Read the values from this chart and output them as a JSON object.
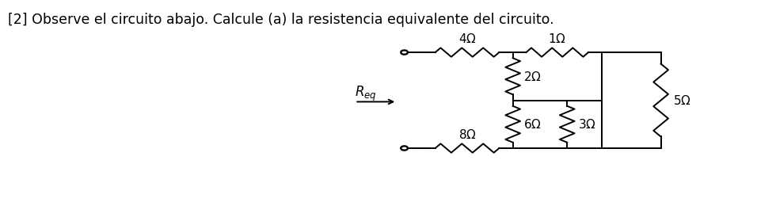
{
  "title_text": "[2] Observe el circuito abajo. Calcule (a) la resistencia equivalente del circuito.",
  "title_fontsize": 12.5,
  "fig_width": 8.04,
  "fig_height": 3.19,
  "bg_color": "#ffffff",
  "line_color": "#000000",
  "line_width": 1.4,
  "resistor_amp": 0.15,
  "n_zigs": 6,
  "label_fontsize": 11
}
